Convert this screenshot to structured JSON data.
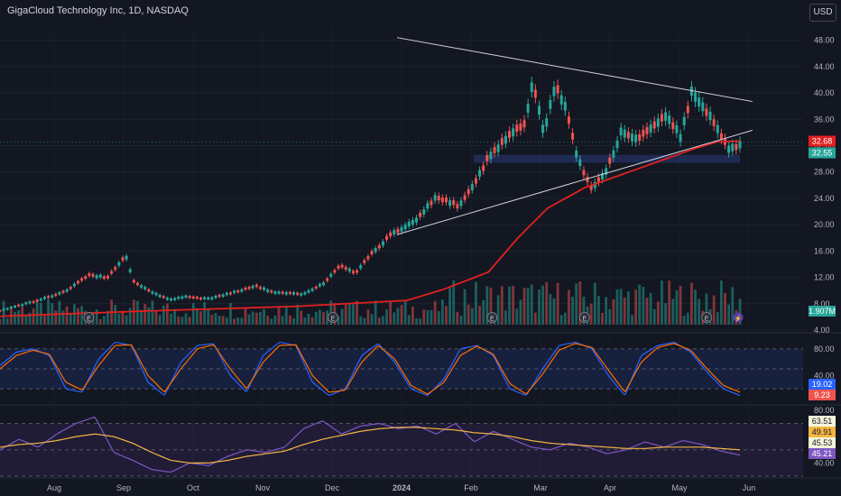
{
  "header": {
    "title": "GigaCloud Technology Inc, 1D, NASDAQ",
    "currency": "USD"
  },
  "colors": {
    "background": "#131722",
    "up": "#26a69a",
    "down": "#ef5350",
    "ma": "#e12020",
    "grid": "#1e222d",
    "axis_text": "#b2b5be",
    "trendline": "#d1d4dc",
    "stoch_k": "#2962ff",
    "stoch_d": "#ff6d00",
    "rsi": "#7e57c2",
    "rsi_ma": "#f5b642"
  },
  "chart_data": [
    {
      "type": "candlestick",
      "y_ticks": [
        "48.00",
        "44.00",
        "40.00",
        "36.00",
        "32.00",
        "28.00",
        "24.00",
        "20.00",
        "16.00",
        "12.00",
        "8.00",
        "4.00"
      ],
      "ylim": [
        4,
        50
      ],
      "x_labels": [
        "Aug",
        "Sep",
        "Oct",
        "Nov",
        "Dec",
        "2024",
        "Feb",
        "Mar",
        "Apr",
        "May",
        "Jun"
      ],
      "price_labels": [
        {
          "text": "32.68",
          "value": 32.68,
          "color": "#e12020"
        },
        {
          "text": "32.55",
          "value": 32.55,
          "color": "#26a69a"
        }
      ],
      "volume_label": "1.907M",
      "resistance_line": {
        "from": {
          "t": 0.5,
          "p": 48.4
        },
        "to": {
          "t": 0.99,
          "p": 39.2
        }
      },
      "support_line": {
        "from": {
          "t": 0.5,
          "p": 18.5
        },
        "to": {
          "t": 0.99,
          "p": 33.5
        }
      },
      "support_zone": [
        29.4,
        30.6
      ],
      "series_points": [
        [
          0.0,
          7.0
        ],
        [
          0.05,
          8.5
        ],
        [
          0.09,
          10.0
        ],
        [
          0.12,
          12.5
        ],
        [
          0.145,
          12.0
        ],
        [
          0.17,
          15.5
        ],
        [
          0.18,
          11.5
        ],
        [
          0.21,
          9.5
        ],
        [
          0.23,
          8.7
        ],
        [
          0.25,
          9.1
        ],
        [
          0.28,
          8.8
        ],
        [
          0.31,
          9.6
        ],
        [
          0.345,
          10.8
        ],
        [
          0.37,
          9.8
        ],
        [
          0.41,
          9.5
        ],
        [
          0.44,
          11.4
        ],
        [
          0.46,
          14.0
        ],
        [
          0.48,
          12.7
        ],
        [
          0.5,
          15.5
        ],
        [
          0.53,
          18.8
        ],
        [
          0.56,
          20.6
        ],
        [
          0.59,
          24.5
        ],
        [
          0.62,
          23.0
        ],
        [
          0.645,
          27.0
        ],
        [
          0.66,
          30.5
        ],
        [
          0.69,
          34.0
        ],
        [
          0.71,
          35.5
        ],
        [
          0.72,
          42.0
        ],
        [
          0.735,
          34.0
        ],
        [
          0.75,
          41.5
        ],
        [
          0.765,
          38.0
        ],
        [
          0.78,
          30.5
        ],
        [
          0.8,
          25.5
        ],
        [
          0.82,
          28.5
        ],
        [
          0.84,
          34.5
        ],
        [
          0.86,
          33.2
        ],
        [
          0.88,
          34.8
        ],
        [
          0.9,
          37.0
        ],
        [
          0.92,
          33.5
        ],
        [
          0.935,
          40.5
        ],
        [
          0.95,
          38.0
        ],
        [
          0.97,
          35.0
        ],
        [
          0.985,
          31.5
        ],
        [
          1.0,
          32.55
        ]
      ],
      "ma_points": [
        [
          0.0,
          6.1
        ],
        [
          0.2,
          6.9
        ],
        [
          0.4,
          7.6
        ],
        [
          0.55,
          8.5
        ],
        [
          0.6,
          10.2
        ],
        [
          0.66,
          12.8
        ],
        [
          0.7,
          18.0
        ],
        [
          0.74,
          22.5
        ],
        [
          0.79,
          25.6
        ],
        [
          0.85,
          28.0
        ],
        [
          0.9,
          30.0
        ],
        [
          0.94,
          31.6
        ],
        [
          0.97,
          32.6
        ],
        [
          1.0,
          32.68
        ]
      ],
      "earnings_markers": [
        0.12,
        0.45,
        0.665,
        0.79,
        0.955
      ]
    },
    {
      "type": "line",
      "indicator": "Stochastic",
      "y_ticks": [
        "80.00",
        "40.00"
      ],
      "ylim": [
        0,
        100
      ],
      "value_labels": [
        {
          "text": "19.02",
          "value": 19.02,
          "color": "#2962ff"
        },
        {
          "text": "9.23",
          "value": 9.23,
          "color": "#ef5350"
        }
      ],
      "series": [
        {
          "values": [
            55,
            75,
            80,
            70,
            20,
            15,
            65,
            90,
            85,
            30,
            10,
            60,
            85,
            88,
            40,
            15,
            70,
            90,
            85,
            30,
            10,
            20,
            70,
            88,
            60,
            20,
            10,
            35,
            80,
            85,
            70,
            20,
            10,
            50,
            85,
            90,
            80,
            40,
            10,
            70,
            85,
            90,
            75,
            45,
            20,
            10
          ]
        },
        {
          "values": [
            50,
            70,
            78,
            72,
            30,
            18,
            55,
            85,
            86,
            40,
            15,
            50,
            80,
            86,
            50,
            20,
            60,
            85,
            86,
            40,
            15,
            18,
            60,
            85,
            65,
            25,
            12,
            30,
            70,
            84,
            72,
            28,
            12,
            42,
            78,
            88,
            82,
            48,
            15,
            60,
            82,
            88,
            78,
            50,
            25,
            15
          ]
        }
      ]
    },
    {
      "type": "line",
      "indicator": "RSI",
      "y_ticks": [
        "80.00",
        "40.00"
      ],
      "ylim": [
        30,
        82
      ],
      "value_labels": [
        {
          "text": "63.51",
          "value": 63.51,
          "color": "#f5f5dc"
        },
        {
          "text": "49.91",
          "value": 49.91,
          "color": "#f5b642"
        },
        {
          "text": "45.53",
          "value": 45.53,
          "color": "#f5f5dc"
        },
        {
          "text": "45.21",
          "value": 45.21,
          "color": "#7e57c2"
        }
      ],
      "series": [
        {
          "values": [
            50,
            58,
            52,
            62,
            70,
            75,
            48,
            42,
            35,
            33,
            40,
            38,
            45,
            50,
            48,
            52,
            66,
            72,
            62,
            68,
            70,
            66,
            68,
            62,
            70,
            56,
            64,
            58,
            52,
            50,
            55,
            52,
            47,
            50,
            56,
            52,
            57,
            54,
            49,
            46
          ]
        },
        {
          "values": [
            52,
            54,
            55,
            57,
            60,
            62,
            60,
            55,
            48,
            42,
            40,
            40,
            42,
            45,
            47,
            49,
            54,
            58,
            61,
            64,
            66,
            67,
            67,
            66,
            65,
            63,
            62,
            60,
            57,
            55,
            54,
            53,
            52,
            51,
            51,
            52,
            52,
            52,
            51,
            50
          ]
        }
      ]
    }
  ]
}
